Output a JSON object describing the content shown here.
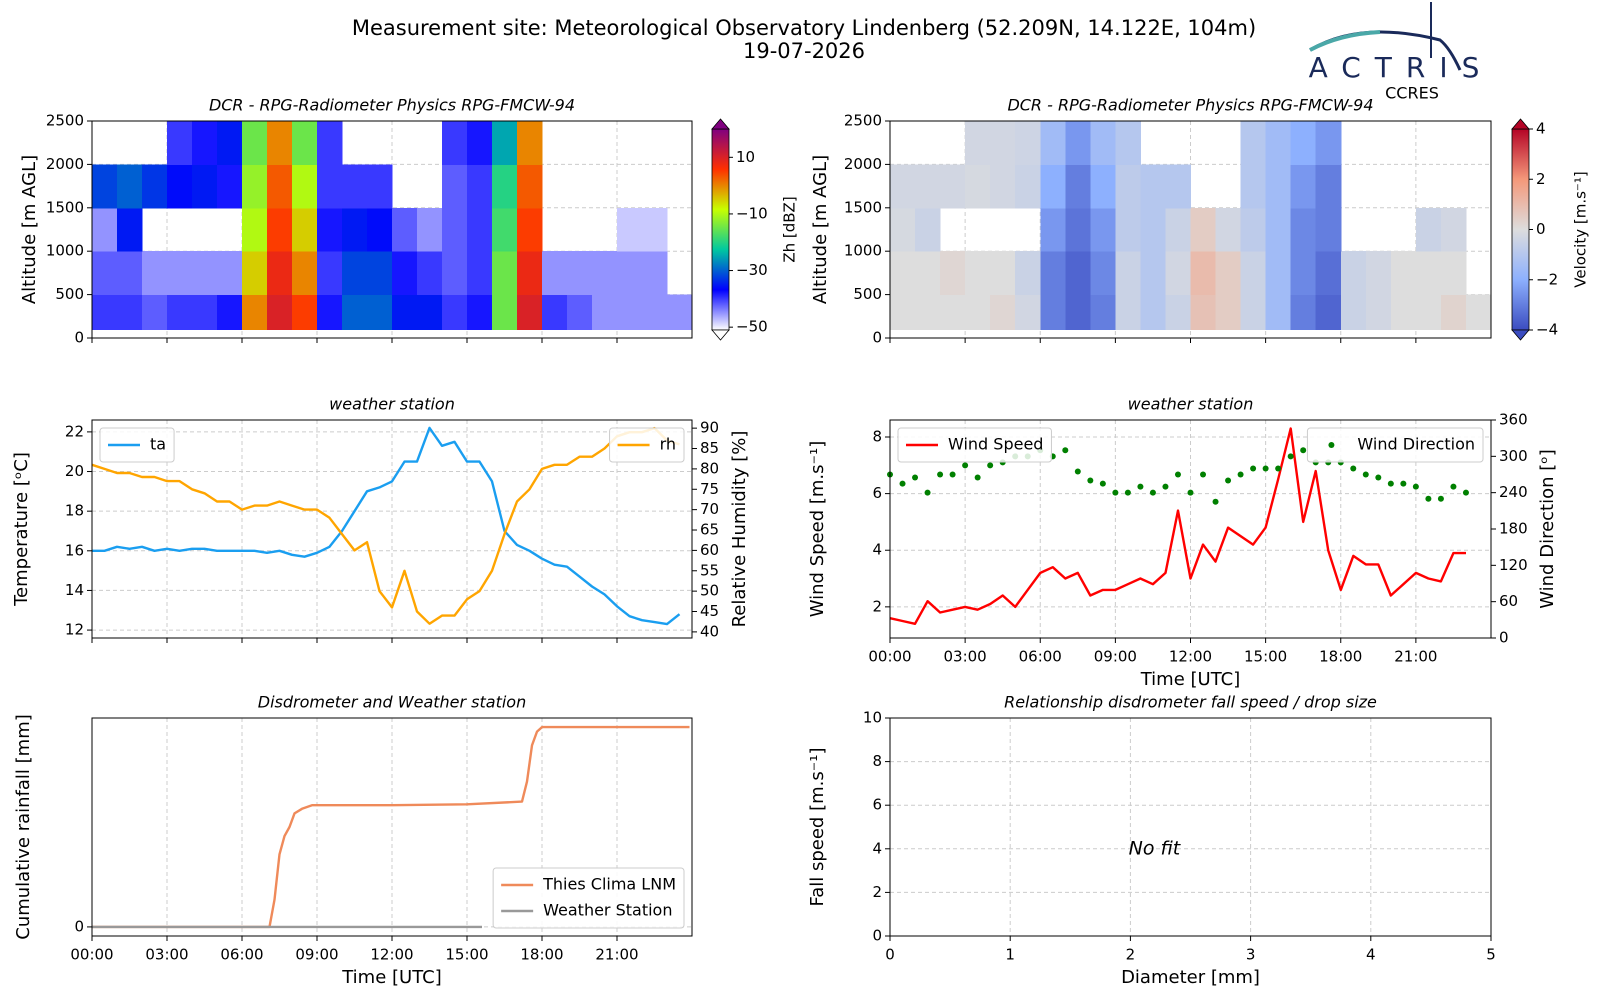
{
  "header": {
    "title": "Measurement site: Meteorological Observatory Lindenberg (52.209N, 14.122E, 104m)",
    "date": "19-07-2026",
    "logo": "ACTRIS",
    "logo_sub": "CCRES"
  },
  "chart_data": [
    {
      "type": "heatmap",
      "title": "DCR - RPG-Radiometer Physics RPG-FMCW-94",
      "ylabel": "Altitude [m AGL]",
      "colorbar_label": "Zh [dBZ]",
      "xlim": [
        0,
        24
      ],
      "xticks": [
        0,
        3,
        6,
        9,
        12,
        15,
        18,
        21
      ],
      "ylim": [
        0,
        2500
      ],
      "yticks": [
        0,
        500,
        1000,
        1500,
        2000,
        2500
      ],
      "grid": true,
      "clim": [
        -51,
        20
      ],
      "cticks": [
        10,
        {
          "value": -10,
          "label": "−10"
        },
        {
          "value": -30,
          "label": "−30"
        },
        {
          "value": -50,
          "label": "−50"
        }
      ],
      "colors": [
        "#ffffff",
        "#0000ff",
        "#00c8a0",
        "#c8ff00",
        "#ff3000",
        "#800080"
      ],
      "x_bins": [
        0,
        1,
        2,
        3,
        4,
        5,
        6,
        7,
        8,
        9,
        10,
        11,
        12,
        13,
        14,
        15,
        16,
        17,
        18,
        19,
        20,
        21,
        22,
        23,
        24
      ],
      "y_bins": [
        100,
        500,
        1000,
        1500,
        2000,
        2500
      ],
      "values": [
        [
          -40,
          -40,
          -42,
          -40,
          -40,
          -38,
          0,
          10,
          5,
          -38,
          -30,
          -30,
          -35,
          -35,
          -40,
          -38,
          -15,
          10,
          -40,
          -42,
          -45,
          -45,
          -45,
          -45
        ],
        [
          -42,
          -42,
          -45,
          -45,
          -45,
          -45,
          -5,
          8,
          0,
          -40,
          -32,
          -32,
          -38,
          -40,
          -42,
          -40,
          -15,
          8,
          -45,
          -45,
          -45,
          -45,
          -45,
          null
        ],
        [
          -45,
          -35,
          null,
          null,
          null,
          null,
          -10,
          5,
          -5,
          -38,
          -35,
          -36,
          -42,
          -45,
          -42,
          -40,
          -18,
          5,
          null,
          null,
          null,
          -48,
          -48,
          null
        ],
        [
          -32,
          -30,
          -33,
          -36,
          -35,
          -38,
          -12,
          3,
          -10,
          -40,
          -40,
          -40,
          null,
          null,
          -42,
          -40,
          -20,
          3,
          null,
          null,
          null,
          null,
          null,
          null
        ],
        [
          null,
          null,
          null,
          -40,
          -38,
          -35,
          -15,
          0,
          -15,
          -40,
          null,
          null,
          null,
          null,
          -40,
          -38,
          -25,
          0,
          null,
          null,
          null,
          null,
          null,
          null
        ]
      ]
    },
    {
      "type": "heatmap",
      "title": "DCR - RPG-Radiometer Physics RPG-FMCW-94",
      "ylabel": "Altitude [m AGL]",
      "colorbar_label": "Velocity [m.s⁻¹]",
      "xlim": [
        0,
        24
      ],
      "xticks": [
        0,
        3,
        6,
        9,
        12,
        15,
        18,
        21
      ],
      "ylim": [
        0,
        2500
      ],
      "yticks": [
        0,
        500,
        1000,
        1500,
        2000,
        2500
      ],
      "grid": true,
      "clim": [
        -4,
        4
      ],
      "cticks": [
        4,
        2,
        0,
        {
          "value": -2,
          "label": "−2"
        },
        {
          "value": -4,
          "label": "−4"
        }
      ],
      "colors": [
        "#3b4cc0",
        "#8db0fe",
        "#dddddd",
        "#f4987a",
        "#b40426"
      ],
      "x_bins": [
        0,
        1,
        2,
        3,
        4,
        5,
        6,
        7,
        8,
        9,
        10,
        11,
        12,
        13,
        14,
        15,
        16,
        17,
        18,
        19,
        20,
        21,
        22,
        23,
        24
      ],
      "y_bins": [
        100,
        500,
        1000,
        1500,
        2000,
        2500
      ],
      "values": [
        [
          0,
          0,
          0,
          0,
          0.2,
          -0.3,
          -3,
          -3.5,
          -3,
          -0.5,
          -1,
          -0.5,
          0.8,
          0.5,
          -0.5,
          -1.5,
          -3,
          -3.5,
          -0.5,
          -0.3,
          0,
          0,
          0.3,
          0
        ],
        [
          0,
          0,
          0.2,
          0,
          0,
          -0.5,
          -3,
          -3.5,
          -2.8,
          -0.5,
          -1,
          -0.3,
          1,
          0.5,
          -0.5,
          -1.5,
          -2.8,
          -3.3,
          -0.5,
          -0.3,
          0,
          0,
          0,
          null
        ],
        [
          -0.2,
          -0.5,
          null,
          null,
          null,
          null,
          -2.5,
          -3.2,
          -2.5,
          -0.8,
          -1,
          -0.5,
          0.5,
          -0.3,
          -0.8,
          -1.5,
          -2.8,
          -3,
          null,
          null,
          null,
          -0.5,
          -0.3,
          null
        ],
        [
          -0.3,
          -0.3,
          -0.3,
          -0.2,
          -0.3,
          -0.5,
          -2,
          -3,
          -2,
          -0.8,
          -1,
          -1,
          null,
          null,
          -1,
          -1.5,
          -2.5,
          -3,
          null,
          null,
          null,
          null,
          null,
          null
        ],
        [
          null,
          null,
          null,
          -0.3,
          -0.3,
          -0.4,
          -1.5,
          -2.5,
          -1.5,
          -1,
          null,
          null,
          null,
          null,
          -1,
          -1.5,
          -2,
          -2.5,
          null,
          null,
          null,
          null,
          null,
          null
        ]
      ]
    },
    {
      "type": "line",
      "title": "weather station",
      "ylabel": "Temperature [ᵒC]",
      "y2label": "Relative Humidity [%]",
      "xlim": [
        0,
        24
      ],
      "xticks": [
        0,
        3,
        6,
        9,
        12,
        15,
        18,
        21
      ],
      "ylim": [
        11.6,
        22.6
      ],
      "yticks": [
        12,
        14,
        16,
        18,
        20,
        22
      ],
      "y2lim": [
        38.5,
        92
      ],
      "y2ticks": [
        40,
        45,
        50,
        55,
        60,
        65,
        70,
        75,
        80,
        85,
        90
      ],
      "grid": true,
      "legend": "upper left",
      "legend2": "upper right",
      "x": [
        0,
        0.5,
        1,
        1.5,
        2,
        2.5,
        3,
        3.5,
        4,
        4.5,
        5,
        5.5,
        6,
        6.5,
        7,
        7.5,
        8,
        8.5,
        9,
        9.5,
        10,
        10.5,
        11,
        11.5,
        12,
        12.5,
        13,
        13.5,
        14,
        14.5,
        15,
        15.5,
        16,
        16.5,
        17,
        17.5,
        18,
        18.5,
        19,
        19.5,
        20,
        20.5,
        21,
        21.5,
        22,
        22.5,
        23,
        23.5
      ],
      "series": [
        {
          "name": "ta",
          "color": "#1a9ef0",
          "style": "line",
          "values": [
            16,
            16,
            16.2,
            16.1,
            16.2,
            16,
            16.1,
            16,
            16.1,
            16.1,
            16,
            16,
            16,
            16,
            15.9,
            16,
            15.8,
            15.7,
            15.9,
            16.2,
            17,
            18,
            19,
            19.2,
            19.5,
            20.5,
            20.5,
            22.2,
            21.3,
            21.5,
            20.5,
            20.5,
            19.5,
            17,
            16.3,
            16,
            15.6,
            15.3,
            15.2,
            14.7,
            14.2,
            13.8,
            13.2,
            12.7,
            12.5,
            12.4,
            12.3,
            12.8
          ]
        },
        {
          "name": "rh",
          "color": "#ffa500",
          "style": "line",
          "axis": "y2",
          "values": [
            81,
            80,
            79,
            79,
            78,
            78,
            77,
            77,
            75,
            74,
            72,
            72,
            70,
            71,
            71,
            72,
            71,
            70,
            70,
            68,
            64,
            60,
            62,
            50,
            46,
            55,
            45,
            42,
            44,
            44,
            48,
            50,
            55,
            64,
            72,
            75,
            80,
            81,
            81,
            83,
            83,
            85,
            88,
            89,
            89,
            90,
            87,
            86
          ]
        }
      ]
    },
    {
      "type": "line",
      "title": "weather station",
      "ylabel": "Wind Speed [m.s⁻¹]",
      "y2label": "Wind Direction [ᵒ]",
      "xlabel": "Time [UTC]",
      "xlim": [
        0,
        24
      ],
      "xticks": [
        {
          "value": 0,
          "label": "00:00"
        },
        {
          "value": 3,
          "label": "03:00"
        },
        {
          "value": 6,
          "label": "06:00"
        },
        {
          "value": 9,
          "label": "09:00"
        },
        {
          "value": 12,
          "label": "12:00"
        },
        {
          "value": 15,
          "label": "15:00"
        },
        {
          "value": 18,
          "label": "18:00"
        },
        {
          "value": 21,
          "label": "21:00"
        }
      ],
      "ylim": [
        0.9,
        8.6
      ],
      "yticks": [
        2,
        4,
        6,
        8
      ],
      "y2lim": [
        0,
        360
      ],
      "y2ticks": [
        0,
        60,
        120,
        180,
        240,
        300,
        360
      ],
      "grid": true,
      "legend": "upper left",
      "legend2": "upper right",
      "x": [
        0,
        0.5,
        1,
        1.5,
        2,
        2.5,
        3,
        3.5,
        4,
        4.5,
        5,
        5.5,
        6,
        6.5,
        7,
        7.5,
        8,
        8.5,
        9,
        9.5,
        10,
        10.5,
        11,
        11.5,
        12,
        12.5,
        13,
        13.5,
        14,
        14.5,
        15,
        15.5,
        16,
        16.5,
        17,
        17.5,
        18,
        18.5,
        19,
        19.5,
        20,
        20.5,
        21,
        21.5,
        22,
        22.5,
        23
      ],
      "series": [
        {
          "name": "Wind Speed",
          "color": "#ff0000",
          "style": "line",
          "values": [
            1.6,
            1.5,
            1.4,
            2.2,
            1.8,
            1.9,
            2,
            1.9,
            2.1,
            2.4,
            2,
            2.6,
            3.2,
            3.4,
            3,
            3.2,
            2.4,
            2.6,
            2.6,
            2.8,
            3,
            2.8,
            3.2,
            5.4,
            3,
            4.2,
            3.6,
            4.8,
            4.5,
            4.2,
            4.8,
            6.5,
            8.3,
            5,
            6.8,
            4,
            2.6,
            3.8,
            3.5,
            3.5,
            2.4,
            2.8,
            3.2,
            3,
            2.9,
            3.9,
            3.9
          ]
        },
        {
          "name": "Wind Direction",
          "color": "#008000",
          "style": "markers",
          "axis": "y2",
          "values": [
            270,
            255,
            265,
            240,
            270,
            270,
            285,
            265,
            285,
            290,
            300,
            300,
            310,
            300,
            310,
            275,
            260,
            255,
            240,
            240,
            250,
            240,
            250,
            270,
            240,
            270,
            225,
            260,
            270,
            280,
            280,
            280,
            300,
            310,
            290,
            290,
            290,
            280,
            270,
            265,
            255,
            255,
            250,
            230,
            230,
            250,
            240
          ]
        }
      ]
    },
    {
      "type": "line",
      "title": "Disdrometer and Weather station",
      "ylabel": "Cumulative rainfall [mm]",
      "xlabel": "Time [UTC]",
      "xlim": [
        0,
        24
      ],
      "xticks": [
        {
          "value": 0,
          "label": "00:00"
        },
        {
          "value": 3,
          "label": "03:00"
        },
        {
          "value": 6,
          "label": "06:00"
        },
        {
          "value": 9,
          "label": "09:00"
        },
        {
          "value": 12,
          "label": "12:00"
        },
        {
          "value": 15,
          "label": "15:00"
        },
        {
          "value": 18,
          "label": "18:00"
        },
        {
          "value": 21,
          "label": "21:00"
        }
      ],
      "ylim": [
        -0.1,
        2.3
      ],
      "yticks": [
        0
      ],
      "grid": true,
      "legend": "lower right",
      "series": [
        {
          "name": "Thies Clima LNM",
          "color": "#ef8a5a",
          "style": "line",
          "x": [
            0,
            7.1,
            7.3,
            7.5,
            7.7,
            7.9,
            8.1,
            8.4,
            8.8,
            12,
            15,
            17.2,
            17.4,
            17.6,
            17.8,
            18,
            21,
            23.9
          ],
          "values": [
            0,
            0,
            0.3,
            0.8,
            1,
            1.1,
            1.25,
            1.3,
            1.34,
            1.34,
            1.35,
            1.38,
            1.6,
            2,
            2.15,
            2.2,
            2.2,
            2.2
          ]
        },
        {
          "name": "Weather Station",
          "color": "#999999",
          "style": "line",
          "x": [
            0,
            15.6
          ],
          "values": [
            0,
            0
          ]
        }
      ]
    },
    {
      "type": "scatter",
      "title": "Relationship disdrometer fall speed / drop size",
      "ylabel": "Fall speed [m.s⁻¹]",
      "xlabel": "Diameter [mm]",
      "annotation": "No fit",
      "xlim": [
        0,
        5
      ],
      "xticks": [
        0,
        1,
        2,
        3,
        4,
        5
      ],
      "ylim": [
        0,
        10
      ],
      "yticks": [
        0,
        2,
        4,
        6,
        8,
        10
      ],
      "grid": true
    }
  ]
}
